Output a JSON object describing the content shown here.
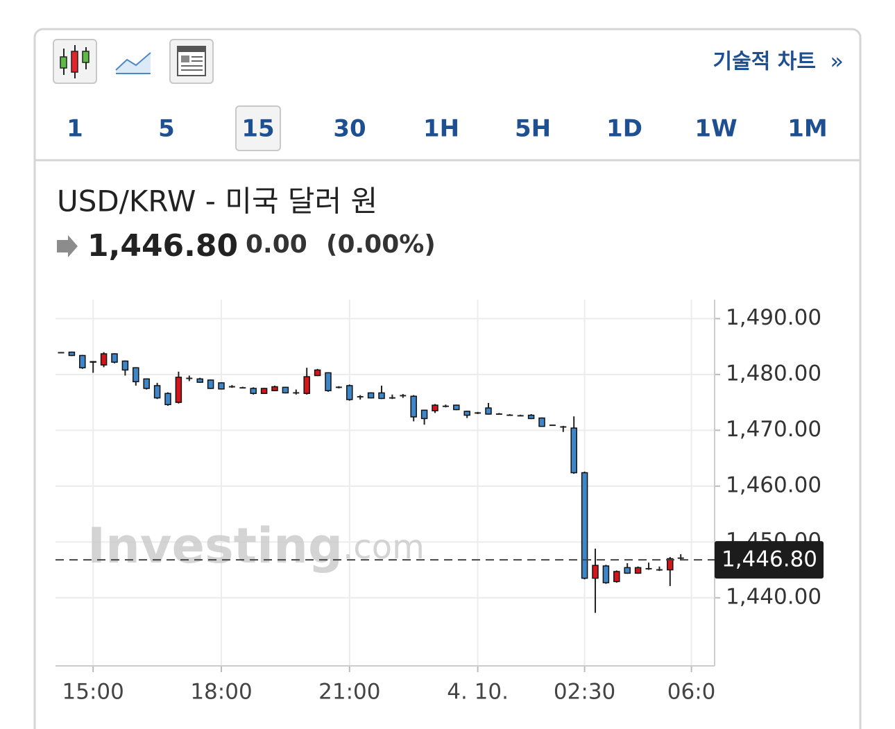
{
  "toolbar": {
    "link": "기술적 차트",
    "link_arrow": "»"
  },
  "timeframes": {
    "items": [
      "1",
      "5",
      "15",
      "30",
      "1H",
      "5H",
      "1D",
      "1W",
      "1M"
    ],
    "selected": "15"
  },
  "header": {
    "title": "USD/KRW - 미국 달러 원",
    "price": "1,446.80",
    "change": "0.00",
    "change_pct": "(0.00%)"
  },
  "watermark": {
    "brand": "Investing",
    "suffix": ".com"
  },
  "chart_data": {
    "type": "candlestick",
    "x": [
      "14:15",
      "14:30",
      "14:45",
      "15:00",
      "15:15",
      "15:30",
      "15:45",
      "16:00",
      "16:15",
      "16:30",
      "16:45",
      "17:00",
      "17:15",
      "17:30",
      "17:45",
      "18:00",
      "18:15",
      "18:30",
      "18:45",
      "19:00",
      "19:15",
      "19:30",
      "19:45",
      "20:00",
      "20:15",
      "20:30",
      "20:45",
      "21:00",
      "21:15",
      "21:30",
      "21:45",
      "22:00",
      "22:15",
      "22:30",
      "22:45",
      "23:00",
      "23:15",
      "23:30",
      "23:45",
      "00:00",
      "00:15",
      "00:30",
      "00:45",
      "01:00",
      "01:15",
      "01:30",
      "01:45",
      "02:00",
      "02:15",
      "02:30",
      "03:45",
      "04:00",
      "04:15",
      "04:30",
      "04:45",
      "05:00",
      "05:15",
      "05:30",
      "05:45"
    ],
    "open": [
      1483.9,
      1484.0,
      1483.4,
      1482.2,
      1481.7,
      1483.7,
      1482.4,
      1481.2,
      1479.2,
      1478.0,
      1476.6,
      1475.0,
      1479.3,
      1479.2,
      1479.0,
      1478.5,
      1477.8,
      1477.6,
      1477.5,
      1476.6,
      1477.1,
      1477.7,
      1476.7,
      1476.6,
      1479.8,
      1480.3,
      1477.7,
      1478.0,
      1476.0,
      1476.7,
      1476.7,
      1475.8,
      1476.2,
      1476.1,
      1473.6,
      1473.5,
      1474.3,
      1474.5,
      1473.4,
      1473.1,
      1474.0,
      1472.9,
      1472.7,
      1472.6,
      1472.7,
      1472.2,
      1470.9,
      1470.6,
      1470.4,
      1462.4,
      1443.5,
      1445.7,
      1442.9,
      1445.4,
      1444.4,
      1445.2,
      1445.0,
      1445.0,
      1447.1
    ],
    "high": [
      1484.0,
      1484.1,
      1483.5,
      1482.4,
      1484.0,
      1483.8,
      1482.5,
      1481.3,
      1479.3,
      1478.5,
      1476.8,
      1480.5,
      1479.8,
      1479.4,
      1479.1,
      1478.6,
      1478.1,
      1477.8,
      1477.7,
      1477.6,
      1478.0,
      1477.8,
      1477.3,
      1481.2,
      1481.0,
      1480.4,
      1477.9,
      1478.2,
      1476.3,
      1476.8,
      1478.0,
      1476.4,
      1476.5,
      1476.3,
      1473.7,
      1474.7,
      1474.6,
      1474.6,
      1473.5,
      1473.3,
      1474.9,
      1473.1,
      1472.9,
      1472.8,
      1472.9,
      1472.3,
      1471.0,
      1470.8,
      1472.5,
      1462.6,
      1448.8,
      1445.9,
      1444.9,
      1446.2,
      1445.6,
      1446.3,
      1445.6,
      1447.3,
      1447.8
    ],
    "low": [
      1483.8,
      1483.3,
      1481.0,
      1480.3,
      1481.3,
      1482.0,
      1479.8,
      1478.0,
      1477.3,
      1475.6,
      1474.4,
      1474.8,
      1478.8,
      1478.5,
      1477.4,
      1477.3,
      1477.6,
      1477.5,
      1476.4,
      1476.5,
      1477.0,
      1476.6,
      1476.4,
      1476.4,
      1479.7,
      1476.9,
      1477.5,
      1475.3,
      1475.5,
      1475.7,
      1475.6,
      1475.6,
      1475.8,
      1471.6,
      1471.0,
      1473.1,
      1474.1,
      1473.6,
      1472.2,
      1472.9,
      1472.8,
      1472.8,
      1472.6,
      1472.5,
      1472.0,
      1470.6,
      1470.8,
      1469.7,
      1462.2,
      1443.3,
      1437.3,
      1442.5,
      1442.7,
      1444.3,
      1444.3,
      1445.0,
      1444.8,
      1442.1,
      1446.9
    ],
    "close": [
      1483.9,
      1483.4,
      1481.2,
      1482.3,
      1483.7,
      1482.2,
      1480.8,
      1478.7,
      1477.5,
      1475.8,
      1474.6,
      1479.5,
      1479.3,
      1478.6,
      1477.5,
      1477.4,
      1477.8,
      1477.6,
      1476.6,
      1477.5,
      1477.8,
      1476.7,
      1476.7,
      1479.6,
      1480.8,
      1477.1,
      1477.7,
      1475.5,
      1476.0,
      1475.8,
      1475.7,
      1475.8,
      1476.2,
      1472.4,
      1472.1,
      1474.5,
      1474.3,
      1473.7,
      1472.7,
      1473.1,
      1472.9,
      1472.9,
      1472.7,
      1472.6,
      1472.1,
      1470.7,
      1470.9,
      1470.6,
      1462.4,
      1443.5,
      1445.8,
      1442.7,
      1444.7,
      1444.4,
      1445.4,
      1445.2,
      1445.0,
      1447.0,
      1447.1
    ],
    "up_color": "#d4161c",
    "down_color": "#3f86c8",
    "xticks": [
      "15:00",
      "18:00",
      "21:00",
      {
        "value": "00:00",
        "label": "4. 10."
      },
      "02:30",
      {
        "value": "06:00",
        "label": "06:0"
      }
    ],
    "ylim": [
      1427.8,
      1493.4
    ],
    "yticks": [
      {
        "value": 1440,
        "label": "1,440.00"
      },
      {
        "value": 1450,
        "label": "1,450.00"
      },
      {
        "value": 1460,
        "label": "1,460.00"
      },
      {
        "value": 1470,
        "label": "1,470.00"
      },
      {
        "value": 1480,
        "label": "1,480.00"
      },
      {
        "value": 1490,
        "label": "1,490.00"
      }
    ],
    "grid": true,
    "last_price": {
      "value": 1446.8,
      "label": "1,446.80"
    }
  }
}
